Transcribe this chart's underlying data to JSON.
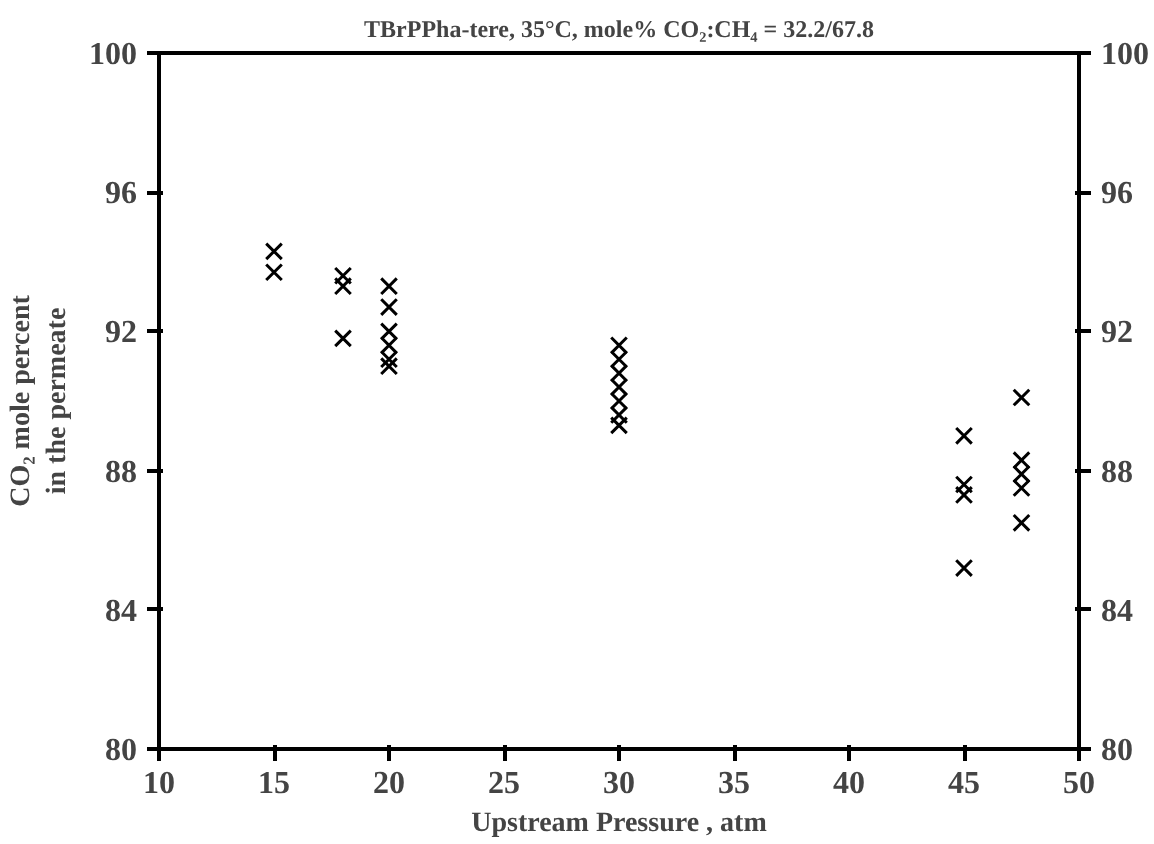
{
  "chart_data": {
    "type": "scatter",
    "title": "TBrPPha-tere, 35°C, mole% CO₂:CH₄ = 32.2/67.8",
    "xlabel": "Upstream Pressure , atm",
    "ylabel": "CO₂ mole percent\nin the permeate",
    "x": [
      15,
      15,
      18,
      18,
      18,
      20,
      20,
      20,
      20,
      20,
      20,
      30,
      30,
      30,
      30,
      30,
      30,
      30,
      45,
      45,
      45,
      45,
      47.5,
      47.5,
      47.5,
      47.5,
      47.5
    ],
    "series": [
      {
        "color": "#000000",
        "values": [
          94.3,
          93.7,
          93.6,
          93.3,
          91.8,
          93.3,
          92.7,
          92.0,
          91.6,
          91.2,
          91.0,
          91.6,
          91.2,
          90.8,
          90.4,
          90.0,
          89.6,
          89.3,
          89.0,
          87.6,
          87.3,
          85.2,
          90.1,
          88.3,
          87.9,
          87.5,
          86.5
        ]
      }
    ],
    "marker": "cross",
    "xlim": [
      10,
      50
    ],
    "xticks": [
      10,
      15,
      20,
      25,
      30,
      35,
      40,
      45,
      50
    ],
    "ylim": [
      80,
      100
    ],
    "yticks": [
      80,
      84,
      88,
      92,
      96,
      100
    ],
    "y2lim": [
      80,
      100
    ],
    "y2ticks": [
      80,
      84,
      88,
      92,
      96,
      100
    ],
    "grid": false
  }
}
